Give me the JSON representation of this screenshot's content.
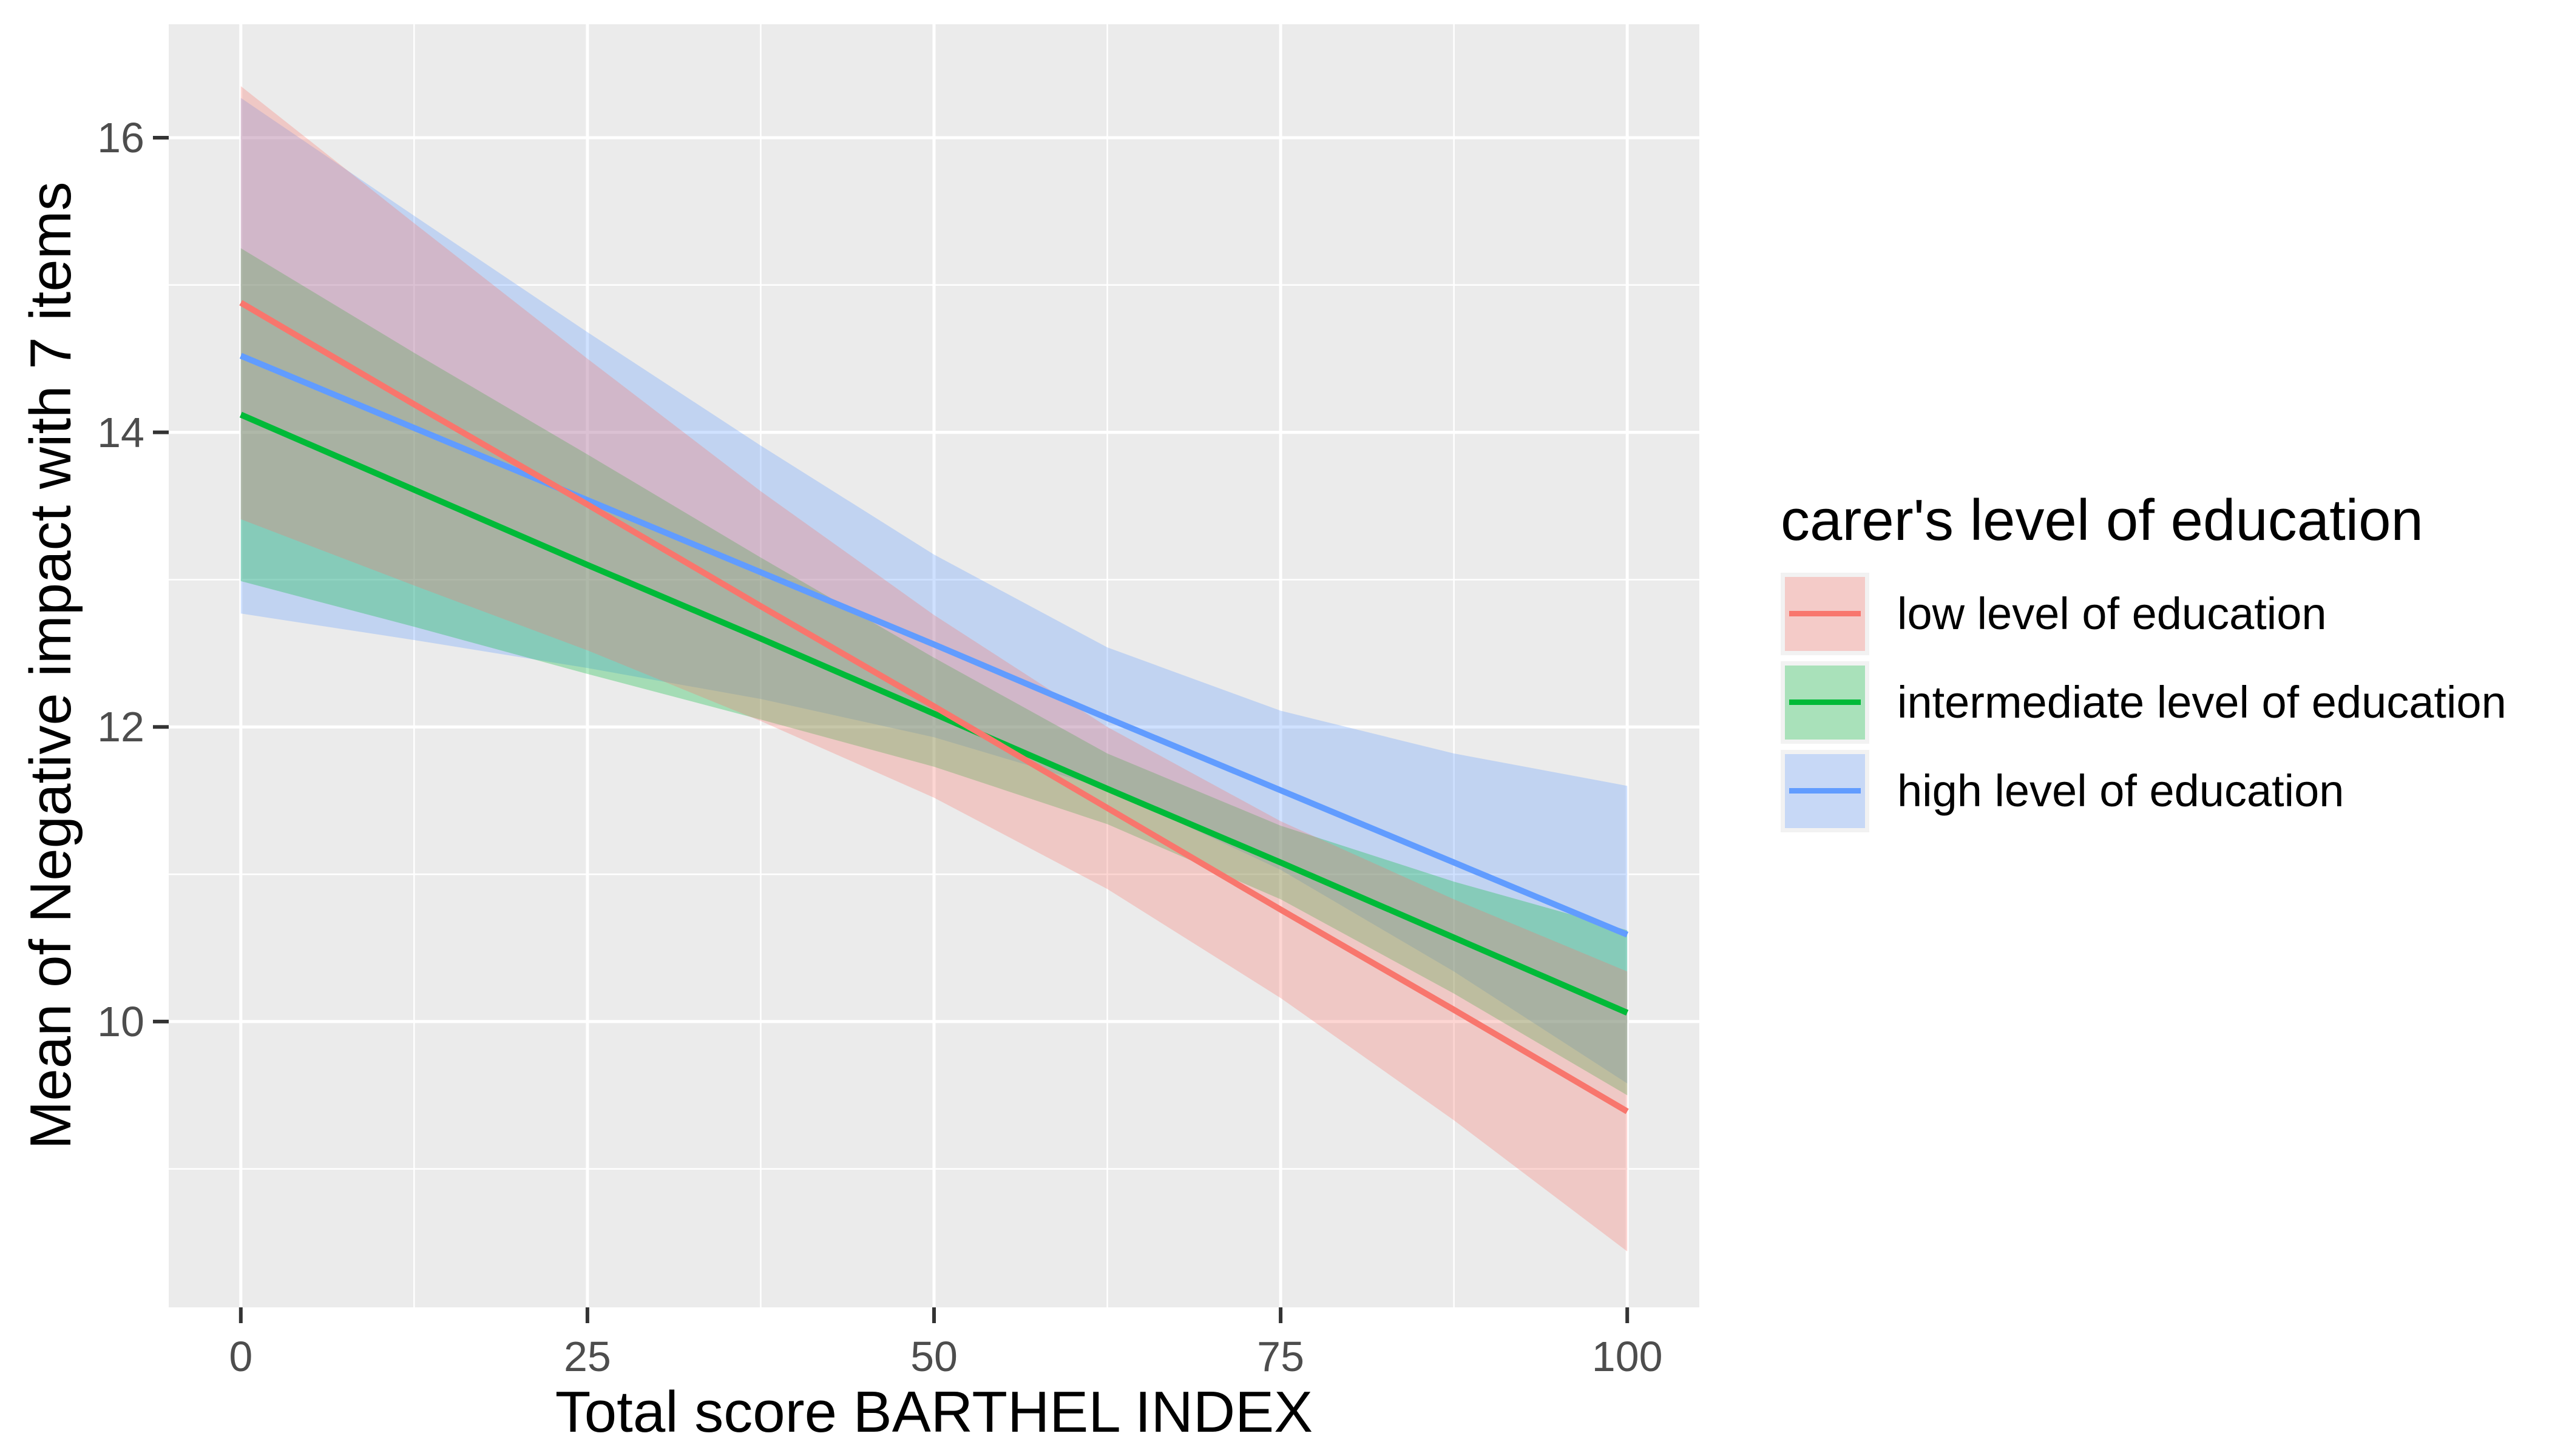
{
  "chart_data": {
    "type": "line",
    "title": "",
    "xlabel": "Total score BARTHEL INDEX",
    "ylabel": "Mean of Negative impact with 7 items",
    "xlim": [
      -5.2,
      105.2
    ],
    "ylim": [
      8.06,
      16.77
    ],
    "grid": true,
    "legend_position": "right",
    "x_ticks": [
      0,
      25,
      50,
      75,
      100
    ],
    "x_tick_labels": [
      "0",
      "25",
      "50",
      "75",
      "100"
    ],
    "y_ticks": [
      16,
      14,
      12,
      10
    ],
    "y_tick_labels": [
      "16",
      "14",
      "12",
      "10"
    ],
    "x_minor_gridlines": [
      12.5,
      37.5,
      62.5,
      87.5
    ],
    "y_minor_gridlines": [
      15,
      13,
      11,
      9
    ],
    "band_alpha": 0.3,
    "x": [
      0,
      12.5,
      25,
      37.5,
      50,
      62.5,
      75,
      87.5,
      100
    ],
    "series": [
      {
        "key": "high",
        "name": "high level of education",
        "color": "#619CFF",
        "y": [
          14.52,
          14.03,
          13.54,
          13.05,
          12.56,
          12.06,
          11.57,
          11.08,
          10.59
        ],
        "ci_lower": [
          12.77,
          12.59,
          12.4,
          12.19,
          11.93,
          11.58,
          11.03,
          10.34,
          9.58
        ],
        "ci_upper": [
          16.27,
          15.47,
          14.68,
          13.91,
          13.17,
          12.54,
          12.11,
          11.82,
          11.6
        ]
      },
      {
        "key": "intermediate",
        "name": "intermediate level of education",
        "color": "#00BA38",
        "y": [
          14.12,
          13.61,
          13.1,
          12.6,
          12.09,
          11.58,
          11.08,
          10.57,
          10.06
        ],
        "ci_lower": [
          12.99,
          12.68,
          12.36,
          12.05,
          11.73,
          11.34,
          10.83,
          10.19,
          9.5
        ],
        "ci_upper": [
          15.25,
          14.54,
          13.85,
          13.15,
          12.47,
          11.82,
          11.33,
          10.95,
          10.62
        ]
      },
      {
        "key": "low",
        "name": "low level of education",
        "color": "#F8766D",
        "y": [
          14.88,
          14.19,
          13.51,
          12.82,
          12.14,
          11.45,
          10.76,
          10.08,
          9.39
        ],
        "ci_lower": [
          13.41,
          12.96,
          12.52,
          12.04,
          11.52,
          10.9,
          10.16,
          9.33,
          8.44
        ],
        "ci_upper": [
          16.35,
          15.42,
          14.5,
          13.6,
          12.76,
          12.0,
          11.36,
          10.83,
          10.34
        ]
      }
    ],
    "legend": {
      "title": "carer's level of education",
      "items": [
        {
          "key": "low",
          "label": "low level of education",
          "line_color": "#F8766D",
          "key_fill": "#F4CBC8"
        },
        {
          "key": "intermediate",
          "label": "intermediate level of education",
          "line_color": "#00BA38",
          "key_fill": "#A9E1BA"
        },
        {
          "key": "high",
          "label": "high level of education",
          "line_color": "#619CFF",
          "key_fill": "#C7D8F6"
        }
      ]
    },
    "colors": {
      "panel_bg": "#EBEBEB",
      "gridline": "#FFFFFF",
      "tick_mark": "#333333",
      "tick_label": "#4D4D4D",
      "axis_title": "#000000"
    }
  }
}
